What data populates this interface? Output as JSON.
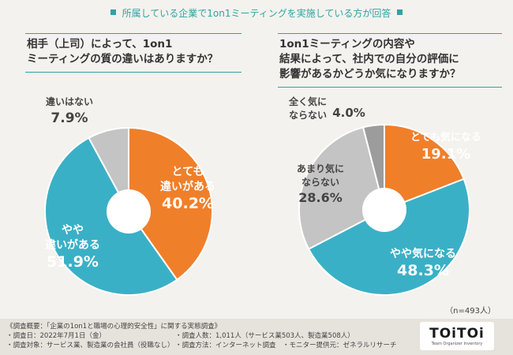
{
  "header": {
    "title": "所属している企業で1on1ミーティングを実施している方が回答"
  },
  "questions": {
    "left": [
      "相手（上司）によって、1on1",
      "ミーティングの質の違いはありますか？"
    ],
    "right": [
      "1on1ミーティングの内容や",
      "結果によって、社内での自分の評価に",
      "影響があるかどうか気になりますか？"
    ]
  },
  "sample_size": "（n=493人）",
  "colors": {
    "orange": "#f07f2a",
    "blue": "#3ab0c6",
    "gray": "#c4c4c4",
    "darkgray": "#9c9c9c",
    "teal": "#2aa6a3"
  },
  "chart_data": [
    {
      "type": "pie",
      "title": "相手（上司）によって、1on1ミーティングの質の違いはありますか？",
      "slices": [
        {
          "label": [
            "とても",
            "違いがある"
          ],
          "value": 40.2,
          "display": "40.2%",
          "color": "#f07f2a"
        },
        {
          "label": [
            "やや",
            "違いがある"
          ],
          "value": 51.9,
          "display": "51.9%",
          "color": "#3ab0c6"
        },
        {
          "label": [
            "違いはない"
          ],
          "value": 7.9,
          "display": "7.9%",
          "color": "#c4c4c4"
        }
      ]
    },
    {
      "type": "pie",
      "title": "1on1ミーティングの内容や結果によって、社内での自分の評価に影響があるかどうか気になりますか？",
      "slices": [
        {
          "label": [
            "とても気になる"
          ],
          "value": 19.1,
          "display": "19.1%",
          "color": "#f07f2a"
        },
        {
          "label": [
            "やや気になる"
          ],
          "value": 48.3,
          "display": "48.3%",
          "color": "#3ab0c6"
        },
        {
          "label": [
            "あまり気に",
            "ならない"
          ],
          "value": 28.6,
          "display": "28.6%",
          "color": "#c4c4c4"
        },
        {
          "label": [
            "全く気に",
            "ならない"
          ],
          "value": 4.0,
          "display": "4.0%",
          "color": "#9c9c9c"
        }
      ]
    }
  ],
  "footer": {
    "notes": [
      "《調査概要：「企業の1on1と職場の心理的安全性」に関する実態調査》",
      "・調査日：2022年7月1日（金）",
      "・調査対象：サービス業、製造業の会社員（役職なし）"
    ],
    "notes2": [
      "・調査人数：1,011人（サービス業503人、製造業508人）",
      "・調査方法：インターネット調査　・モニター提供元：ゼネラルリサーチ"
    ]
  },
  "logo": {
    "text": "TOiTOi",
    "sub": "Team Organizer Inventory"
  }
}
